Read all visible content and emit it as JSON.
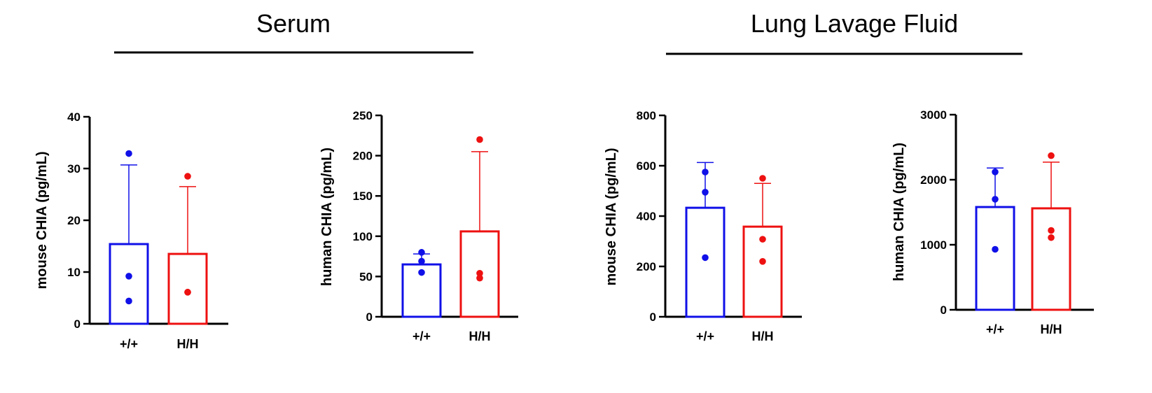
{
  "groups": [
    {
      "title": "Serum"
    },
    {
      "title": "Lung Lavage Fluid"
    }
  ],
  "colors": {
    "wt": "#1010e8",
    "hh": "#ee1111",
    "axis": "#000000"
  },
  "chart_data": [
    {
      "type": "bar",
      "group": "Serum",
      "ylabel": "mouse CHIA (pg/mL)",
      "ylim": [
        0,
        40
      ],
      "yticks": [
        0,
        10,
        20,
        30,
        40
      ],
      "categories": [
        "+/+",
        "H/H"
      ],
      "series": [
        {
          "category": "+/+",
          "mean": 15.4,
          "sd_upper": 30.7,
          "points": [
            32.9,
            9.2,
            4.4
          ]
        },
        {
          "category": "H/H",
          "mean": 13.5,
          "sd_upper": 26.5,
          "points": [
            28.5,
            6.1,
            6.1
          ]
        }
      ]
    },
    {
      "type": "bar",
      "group": "Serum",
      "ylabel": "human CHIA (pg/mL)",
      "ylim": [
        0,
        250
      ],
      "yticks": [
        0,
        50,
        100,
        150,
        200,
        250
      ],
      "categories": [
        "+/+",
        "H/H"
      ],
      "series": [
        {
          "category": "+/+",
          "mean": 65,
          "sd_upper": 78,
          "points": [
            80,
            69,
            55
          ]
        },
        {
          "category": "H/H",
          "mean": 106,
          "sd_upper": 205,
          "points": [
            220,
            54,
            48
          ]
        }
      ]
    },
    {
      "type": "bar",
      "group": "Lung Lavage Fluid",
      "ylabel": "mouse CHIA (pg/mL)",
      "ylim": [
        0,
        800
      ],
      "yticks": [
        0,
        200,
        400,
        600,
        800
      ],
      "categories": [
        "+/+",
        "H/H"
      ],
      "series": [
        {
          "category": "+/+",
          "mean": 433,
          "sd_upper": 613,
          "points": [
            575,
            495,
            235
          ]
        },
        {
          "category": "H/H",
          "mean": 358,
          "sd_upper": 530,
          "points": [
            550,
            308,
            220
          ]
        }
      ]
    },
    {
      "type": "bar",
      "group": "Lung Lavage Fluid",
      "ylabel": "human CHIA (pg/mL)",
      "ylim": [
        0,
        3000
      ],
      "yticks": [
        0,
        1000,
        2000,
        3000
      ],
      "categories": [
        "+/+",
        "H/H"
      ],
      "series": [
        {
          "category": "+/+",
          "mean": 1580,
          "sd_upper": 2180,
          "points": [
            2120,
            1700,
            930
          ]
        },
        {
          "category": "H/H",
          "mean": 1560,
          "sd_upper": 2270,
          "points": [
            2370,
            1220,
            1110
          ]
        }
      ]
    }
  ]
}
